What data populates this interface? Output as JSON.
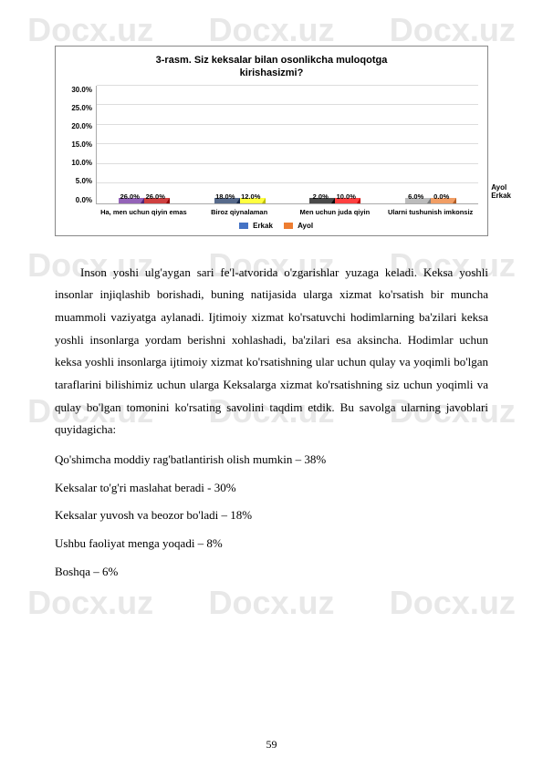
{
  "watermark": "Docx.uz",
  "chart": {
    "title_line1": "3-rasm. Siz keksalar bilan osonlikcha muloqotga",
    "title_line2": "kirishasizmi?",
    "ylim": [
      0,
      30
    ],
    "ytick_step": 5,
    "yticks": [
      "30.0%",
      "25.0%",
      "20.0%",
      "15.0%",
      "10.0%",
      "5.0%",
      "0.0%"
    ],
    "categories": [
      "Ha, men uchun qiyin emas",
      "Biroz qiynalaman",
      "Men uchun juda qiyin",
      "Ularni tushunish imkonsiz"
    ],
    "series": [
      {
        "name": "Erkak",
        "color": "#0070c0",
        "values": [
          26.0,
          18.0,
          2.0,
          6.0
        ]
      },
      {
        "name": "Ayol",
        "color": "#ed7d31",
        "values": [
          26.0,
          12.0,
          10.0,
          0.0
        ]
      }
    ],
    "bar_colors_override": [
      [
        "#7030a0",
        "#c00000"
      ],
      [
        "#1f3864",
        "#ffff00"
      ],
      [
        "#0d0d0d",
        "#ff0000"
      ],
      [
        "#a6a6a6",
        "#ed7d31"
      ]
    ],
    "value_labels": [
      [
        "26.0%",
        "26.0%"
      ],
      [
        "18.0%",
        "12.0%"
      ],
      [
        "2.0%",
        "10.0%"
      ],
      [
        "6.0%",
        "0.0%"
      ]
    ],
    "z_labels": [
      "Ayol",
      "Erkak"
    ],
    "legend_colors": {
      "Erkak": "#4472c4",
      "Ayol": "#ed7d31"
    }
  },
  "paragraph": "Inson yoshi ulg'aygan sari fe'l-atvorida o'zgarishlar yuzaga keladi. Keksa yoshli insonlar injiqlashib borishadi, buning natijasida ularga xizmat ko'rsatish bir muncha muammoli vaziyatga aylanadi. Ijtimoiy xizmat ko'rsatuvchi hodimlarning ba'zilari keksa yoshli insonlarga yordam berishni xohlashadi, ba'zilari esa aksincha. Hodimlar uchun keksa yoshli insonlarga ijtimoiy xizmat ko'rsatishning ular uchun qulay va yoqimli bo'lgan taraflarini bilishimiz uchun ularga Keksalarga xizmat ko'rsatishning siz uchun yoqimli va qulay bo'lgan tomonini ko'rsating savolini taqdim etdik. Bu savolga ularning javoblari quyidagicha:",
  "items": [
    "Qo'shimcha moddiy rag'batlantirish olish mumkin – 38%",
    "Keksalar to'g'ri maslahat beradi - 30%",
    "Keksalar yuvosh va beozor bo'ladi – 18%",
    "Ushbu faoliyat menga yoqadi – 8%",
    "Boshqa – 6%"
  ],
  "page_number": "59"
}
